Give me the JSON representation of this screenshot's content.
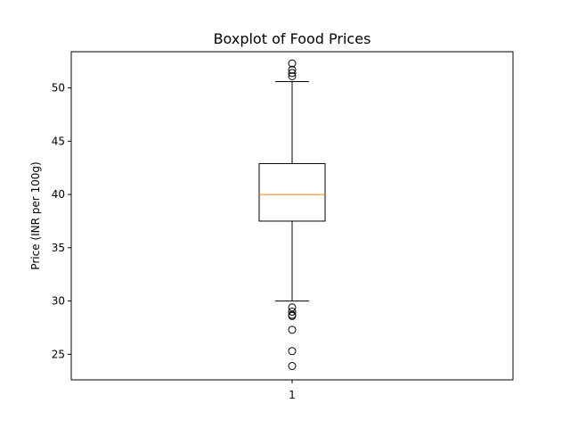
{
  "chart_data": {
    "type": "boxplot",
    "title": "Boxplot of Food Prices",
    "xlabel": "",
    "ylabel": "Price (INR per 100g)",
    "ylim": [
      22.6,
      53.4
    ],
    "yticks": [
      25,
      30,
      35,
      40,
      45,
      50
    ],
    "categories": [
      "1"
    ],
    "boxes": [
      {
        "category": "1",
        "whisker_low": 30.0,
        "q1": 37.5,
        "median": 40.0,
        "q3": 42.9,
        "whisker_high": 50.6,
        "outliers": [
          23.9,
          25.3,
          27.3,
          28.6,
          28.7,
          29.0,
          29.4,
          51.1,
          51.4,
          51.7,
          52.3
        ]
      }
    ],
    "grid": false,
    "legend": "none",
    "colors": {
      "box": "#000000",
      "median": "#ff7f0e",
      "outlier": "#000000"
    }
  }
}
